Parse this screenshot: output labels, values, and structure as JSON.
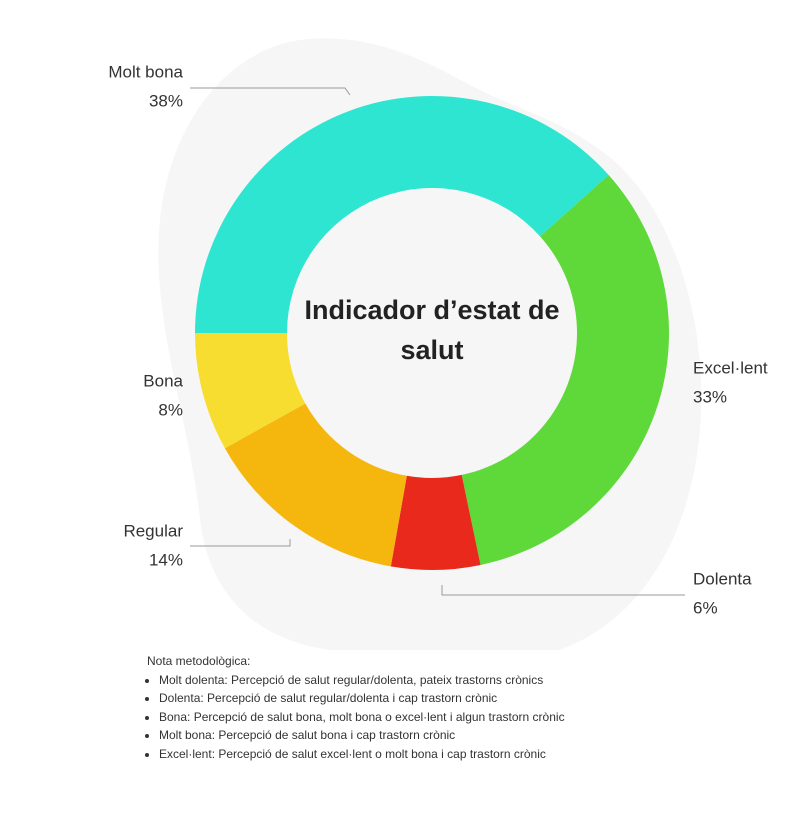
{
  "chart_data": {
    "type": "donut",
    "title": "Indicador d’estat de salut",
    "categories": [
      "Molt bona",
      "Excel·lent",
      "Dolenta",
      "Regular",
      "Bona"
    ],
    "values": [
      38,
      33,
      6,
      14,
      8
    ],
    "value_labels": [
      "38%",
      "33%",
      "6%",
      "14%",
      "8%"
    ],
    "colors": [
      "#2ee5d1",
      "#5fd83a",
      "#e8291b",
      "#f5b60d",
      "#f7dd2f"
    ]
  },
  "notes": {
    "title": "Nota metodològica:",
    "items": [
      "Molt dolenta: Percepció de salut regular/dolenta, pateix trastorns crònics",
      "Dolenta: Percepció de salut regular/dolenta i cap trastorn crònic",
      "Bona: Percepció de salut bona, molt bona o excel·lent i algun trastorn crònic",
      "Molt bona: Percepció de salut bona i cap trastorn crònic",
      "Excel·lent: Percepció de salut excel·lent o molt bona i cap trastorn crònic"
    ]
  }
}
